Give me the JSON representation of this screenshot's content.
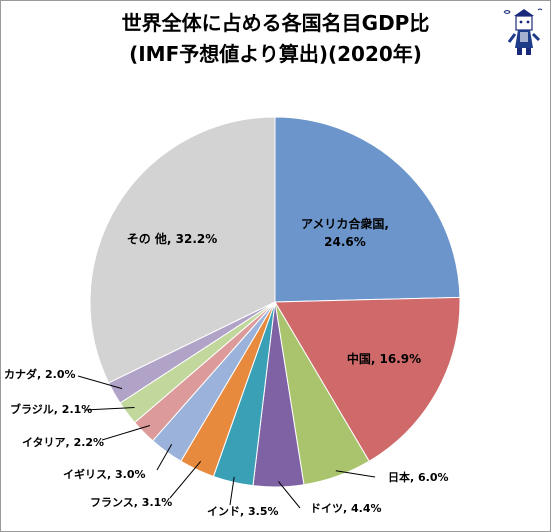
{
  "chart_data": {
    "type": "pie",
    "title_line1": "世界全体に占める各国名目GDP比",
    "title_line2": "(IMF予想値より算出)(2020年)",
    "slices": [
      {
        "label": "アメリカ合衆国",
        "value": 24.6,
        "value_label": "24.6%",
        "color": "#6b95cb"
      },
      {
        "label": "中国",
        "value": 16.9,
        "value_label": "16.9%",
        "color": "#d06a6a"
      },
      {
        "label": "日本",
        "value": 6.0,
        "value_label": "6.0%",
        "color": "#a9c46d"
      },
      {
        "label": "ドイツ",
        "value": 4.4,
        "value_label": "4.4%",
        "color": "#7f62a4"
      },
      {
        "label": "インド",
        "value": 3.5,
        "value_label": "3.5%",
        "color": "#3aa0b5"
      },
      {
        "label": "フランス",
        "value": 3.1,
        "value_label": "3.1%",
        "color": "#e88a3d"
      },
      {
        "label": "イギリス",
        "value": 3.0,
        "value_label": "3.0%",
        "color": "#9bb3da"
      },
      {
        "label": "イタリア",
        "value": 2.2,
        "value_label": "2.2%",
        "color": "#dc9b9a"
      },
      {
        "label": "ブラジル",
        "value": 2.1,
        "value_label": "2.1%",
        "color": "#c2d79c"
      },
      {
        "label": "カナダ",
        "value": 2.0,
        "value_label": "2.0%",
        "color": "#b1a2c8"
      },
      {
        "label": "その 他",
        "value": 32.2,
        "value_label": "32.2%",
        "color": "#d3d3d3"
      }
    ]
  }
}
